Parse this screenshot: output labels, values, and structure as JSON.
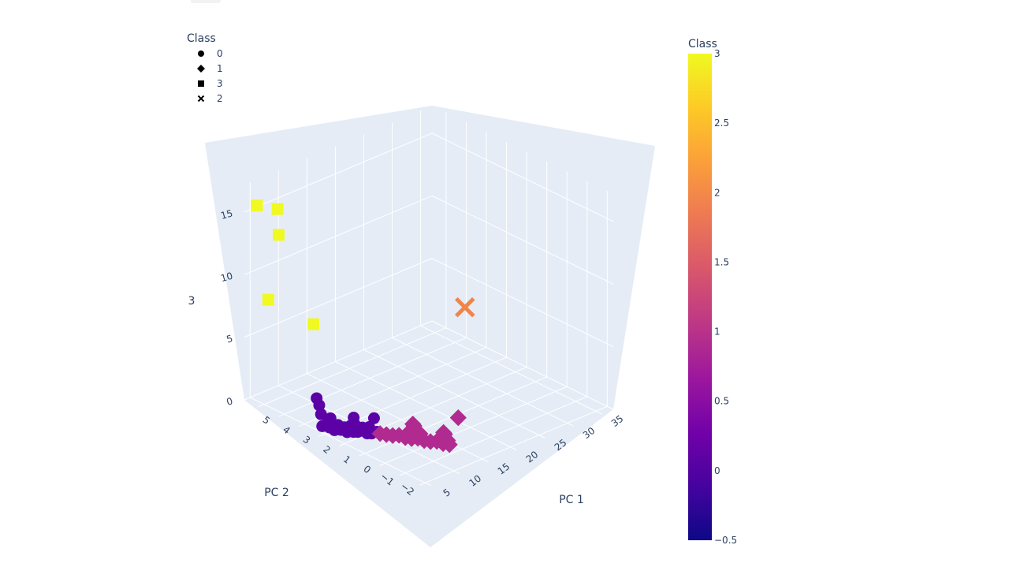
{
  "chart_data": {
    "type": "scatter3d",
    "axes": {
      "x": {
        "title": "PC 1",
        "ticks": [
          "5",
          "10",
          "15",
          "20",
          "25",
          "30",
          "35"
        ]
      },
      "y": {
        "title": "PC 2",
        "ticks": [
          "−2",
          "−1",
          "0",
          "1",
          "2",
          "3",
          "4",
          "5"
        ]
      },
      "z": {
        "title": "3",
        "ticks": [
          "0",
          "5",
          "10",
          "15"
        ]
      }
    },
    "legend": {
      "title": "Class",
      "placement": "top-left",
      "items": [
        {
          "label": "0",
          "symbol": "circle"
        },
        {
          "label": "1",
          "symbol": "diamond"
        },
        {
          "label": "3",
          "symbol": "square"
        },
        {
          "label": "2",
          "symbol": "x"
        }
      ]
    },
    "colorbar": {
      "title": "Class",
      "range": [
        -0.5,
        3
      ],
      "ticks": [
        "3",
        "2.5",
        "2",
        "1.5",
        "1",
        "0.5",
        "0",
        "−0.5"
      ],
      "colors": [
        "#0d0887",
        "#46039f",
        "#7201a8",
        "#9c179e",
        "#bd3786",
        "#d8576b",
        "#ed7953",
        "#fb9f3a",
        "#fdca26",
        "#f0f921"
      ]
    },
    "series": [
      {
        "name": "0",
        "symbol": "circle",
        "color": "#5c01a6",
        "points": [
          {
            "x": 6,
            "y": 3.4,
            "z": 0.1
          },
          {
            "x": 6.2,
            "y": 3.1,
            "z": 0.2
          },
          {
            "x": 6.4,
            "y": 2.9,
            "z": 0.1
          },
          {
            "x": 6.6,
            "y": 3.3,
            "z": 0.3
          },
          {
            "x": 6.8,
            "y": 2.7,
            "z": 0.2
          },
          {
            "x": 7.0,
            "y": 2.9,
            "z": 0.4
          },
          {
            "x": 7.2,
            "y": 2.5,
            "z": 0.1
          },
          {
            "x": 7.4,
            "y": 2.7,
            "z": 0.3
          },
          {
            "x": 7.6,
            "y": 2.3,
            "z": 0.2
          },
          {
            "x": 7.8,
            "y": 2.5,
            "z": 0.5
          },
          {
            "x": 8.0,
            "y": 2.2,
            "z": 0.2
          },
          {
            "x": 8.2,
            "y": 2.4,
            "z": 0.6
          },
          {
            "x": 8.4,
            "y": 2.1,
            "z": 0.3
          },
          {
            "x": 8.6,
            "y": 1.9,
            "z": 0.2
          },
          {
            "x": 8.8,
            "y": 2.2,
            "z": 0.4
          },
          {
            "x": 9.0,
            "y": 1.8,
            "z": 0.2
          },
          {
            "x": 9.3,
            "y": 2.0,
            "z": 0.5
          },
          {
            "x": 9.6,
            "y": 1.7,
            "z": 0.3
          },
          {
            "x": 6.5,
            "y": 3.6,
            "z": 0.8
          },
          {
            "x": 7.1,
            "y": 3.3,
            "z": 0.6
          },
          {
            "x": 8.7,
            "y": 2.6,
            "z": 0.9
          },
          {
            "x": 10.5,
            "y": 2.1,
            "z": 0.9
          },
          {
            "x": 7.6,
            "y": 4.0,
            "z": 1.0
          },
          {
            "x": 7.5,
            "y": 4.1,
            "z": 1.5
          }
        ]
      },
      {
        "name": "1",
        "symbol": "diamond",
        "color": "#b12a90",
        "points": [
          {
            "x": 9.8,
            "y": 1.6,
            "z": 0.2
          },
          {
            "x": 10.2,
            "y": 1.4,
            "z": 0.2
          },
          {
            "x": 10.6,
            "y": 1.2,
            "z": 0.2
          },
          {
            "x": 11.0,
            "y": 1.0,
            "z": 0.3
          },
          {
            "x": 11.4,
            "y": 0.8,
            "z": 0.2
          },
          {
            "x": 11.8,
            "y": 0.6,
            "z": 0.2
          },
          {
            "x": 12.2,
            "y": 0.4,
            "z": 0.3
          },
          {
            "x": 12.6,
            "y": 0.2,
            "z": 0.2
          },
          {
            "x": 13.0,
            "y": 0.0,
            "z": 0.2
          },
          {
            "x": 13.4,
            "y": -0.2,
            "z": 0.3
          },
          {
            "x": 13.8,
            "y": -0.4,
            "z": 0.2
          },
          {
            "x": 14.2,
            "y": -0.6,
            "z": 0.2
          },
          {
            "x": 14.6,
            "y": -0.4,
            "z": 0.3
          },
          {
            "x": 15.0,
            "y": -0.2,
            "z": 0.2
          },
          {
            "x": 15.5,
            "y": 0.0,
            "z": 0.3
          },
          {
            "x": 16.0,
            "y": 0.2,
            "z": 0.2
          },
          {
            "x": 12.5,
            "y": 0.9,
            "z": 0.4
          },
          {
            "x": 13.3,
            "y": 0.6,
            "z": 0.3
          },
          {
            "x": 14.0,
            "y": 1.1,
            "z": 0.4
          },
          {
            "x": 14.5,
            "y": 1.3,
            "z": 0.3
          },
          {
            "x": 20.0,
            "y": 0.6,
            "z": 0.3
          }
        ]
      },
      {
        "name": "3",
        "symbol": "square",
        "color": "#f0f921",
        "points": [
          {
            "x": 5.5,
            "y": 6.5,
            "z": 15.4
          },
          {
            "x": 7.0,
            "y": 5.9,
            "z": 15.3
          },
          {
            "x": 7.2,
            "y": 5.9,
            "z": 13.2
          },
          {
            "x": 4.3,
            "y": 5.6,
            "z": 8.8
          },
          {
            "x": 9.4,
            "y": 4.8,
            "z": 6.5
          }
        ]
      },
      {
        "name": "2",
        "symbol": "x",
        "color": "#ef8548",
        "points": [
          {
            "x": 35.0,
            "y": 4.5,
            "z": 3.2
          }
        ]
      }
    ]
  }
}
